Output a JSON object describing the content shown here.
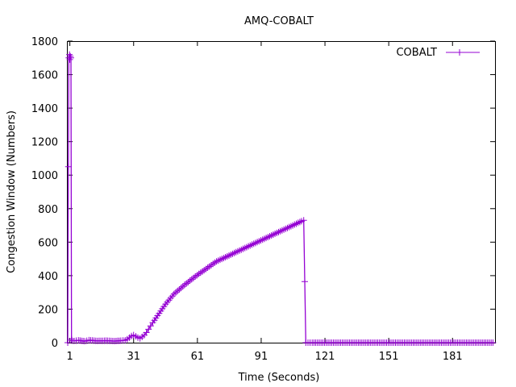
{
  "chart_data": {
    "type": "line",
    "title": "AMQ-COBALT",
    "xlabel": "Time (Seconds)",
    "ylabel": "Congestion Window (Numbers)",
    "xlim": [
      0,
      201
    ],
    "ylim": [
      0,
      1800
    ],
    "xticks": [
      1,
      31,
      61,
      91,
      121,
      151,
      181
    ],
    "yticks": [
      0,
      200,
      400,
      600,
      800,
      1000,
      1200,
      1400,
      1600,
      1800
    ],
    "grid": false,
    "legend": {
      "position": "top-right"
    },
    "colors": {
      "series": "#9400d3",
      "axis": "#000000"
    },
    "series": [
      {
        "name": "COBALT",
        "style": "linespoints",
        "marker": "plus",
        "x": [
          0,
          0.3,
          0.5,
          0.8,
          1,
          1.2,
          1.5,
          1.8,
          2,
          3,
          5,
          8,
          10,
          14,
          18,
          22,
          25,
          27,
          28,
          29,
          30,
          31,
          32,
          33,
          34,
          35,
          36,
          37,
          38,
          40,
          43,
          46,
          50,
          55,
          60,
          65,
          70,
          75,
          80,
          85,
          90,
          95,
          100,
          105,
          110,
          111,
          111.5,
          112,
          113,
          115,
          120,
          130,
          140,
          150,
          160,
          170,
          180,
          190,
          200
        ],
        "y": [
          0,
          1050,
          1700,
          1720,
          1690,
          1710,
          1700,
          20,
          12,
          10,
          14,
          8,
          15,
          10,
          12,
          9,
          12,
          14,
          20,
          30,
          40,
          45,
          38,
          30,
          25,
          35,
          45,
          60,
          80,
          120,
          175,
          230,
          290,
          345,
          395,
          440,
          485,
          515,
          545,
          575,
          605,
          635,
          665,
          695,
          725,
          730,
          365,
          0,
          0,
          0,
          0,
          0,
          0,
          0,
          0,
          0,
          0,
          0,
          0
        ]
      }
    ]
  }
}
